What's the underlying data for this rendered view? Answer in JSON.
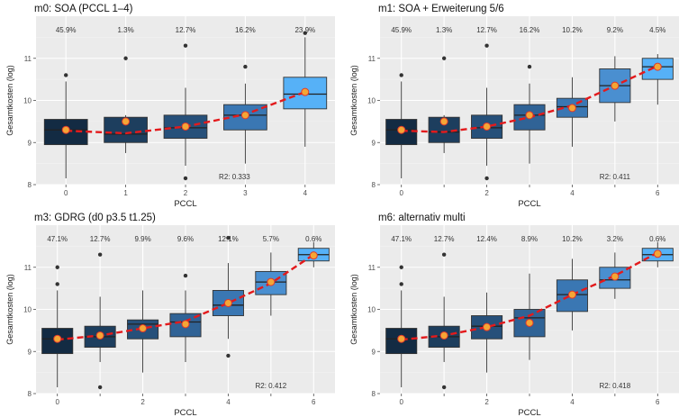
{
  "chart_data": [
    {
      "type": "boxplot",
      "title": "m0: SOA (PCCL 1–4)",
      "xlabel": "PCCL",
      "ylabel": "Gesamtkosten (log)",
      "ylim": [
        8,
        12
      ],
      "yticks": [
        8,
        9,
        10,
        11
      ],
      "x_ticks": [
        "0",
        "1",
        "2",
        "3",
        "4"
      ],
      "r2_label": "R2: 0.333",
      "groups": [
        {
          "x": "0",
          "pct": "45.9%",
          "whisker_low": 8.15,
          "q1": 8.95,
          "median": 9.3,
          "q3": 9.55,
          "whisker_high": 10.45,
          "mean": 9.3,
          "outliers": [
            10.6
          ]
        },
        {
          "x": "1",
          "pct": "1.3%",
          "whisker_low": 8.75,
          "q1": 9.0,
          "median": 9.2,
          "q3": 9.6,
          "whisker_high": 9.65,
          "mean": 9.5,
          "outliers": [
            11.0
          ]
        },
        {
          "x": "2",
          "pct": "12.7%",
          "whisker_low": 8.45,
          "q1": 9.1,
          "median": 9.35,
          "q3": 9.65,
          "whisker_high": 10.3,
          "mean": 9.38,
          "outliers": [
            8.15,
            11.3
          ]
        },
        {
          "x": "3",
          "pct": "16.2%",
          "whisker_low": 8.5,
          "q1": 9.3,
          "median": 9.65,
          "q3": 9.9,
          "whisker_high": 10.4,
          "mean": 9.65,
          "outliers": [
            10.8
          ]
        },
        {
          "x": "4",
          "pct": "23.9%",
          "whisker_low": 8.9,
          "q1": 9.8,
          "median": 10.15,
          "q3": 10.55,
          "whisker_high": 11.5,
          "mean": 10.2,
          "outliers": [
            11.6
          ]
        }
      ],
      "trend": [
        9.28,
        9.22,
        9.38,
        9.67,
        10.2
      ]
    },
    {
      "type": "boxplot",
      "title": "m1: SOA + Erweiterung 5/6",
      "xlabel": "PCCL",
      "ylabel": "Gesamtkosten (log)",
      "ylim": [
        8,
        12
      ],
      "yticks": [
        8,
        9,
        10,
        11
      ],
      "x_ticks": [
        "0",
        "",
        "2",
        "",
        "4",
        "",
        "6"
      ],
      "r2_label": "R2: 0.411",
      "groups": [
        {
          "x": "0",
          "pct": "45.9%",
          "whisker_low": 8.15,
          "q1": 8.95,
          "median": 9.3,
          "q3": 9.55,
          "whisker_high": 10.45,
          "mean": 9.3,
          "outliers": [
            10.6
          ]
        },
        {
          "x": "1",
          "pct": "1.3%",
          "whisker_low": 8.75,
          "q1": 9.0,
          "median": 9.25,
          "q3": 9.6,
          "whisker_high": 9.65,
          "mean": 9.5,
          "outliers": [
            11.0
          ]
        },
        {
          "x": "2",
          "pct": "12.7%",
          "whisker_low": 8.45,
          "q1": 9.1,
          "median": 9.35,
          "q3": 9.65,
          "whisker_high": 10.3,
          "mean": 9.38,
          "outliers": [
            8.15,
            11.3
          ]
        },
        {
          "x": "3",
          "pct": "16.2%",
          "whisker_low": 8.5,
          "q1": 9.3,
          "median": 9.65,
          "q3": 9.9,
          "whisker_high": 10.4,
          "mean": 9.65,
          "outliers": [
            10.8
          ]
        },
        {
          "x": "4",
          "pct": "10.2%",
          "whisker_low": 8.9,
          "q1": 9.6,
          "median": 9.85,
          "q3": 10.05,
          "whisker_high": 10.55,
          "mean": 9.82,
          "outliers": []
        },
        {
          "x": "5",
          "pct": "9.2%",
          "whisker_low": 9.5,
          "q1": 9.95,
          "median": 10.35,
          "q3": 10.75,
          "whisker_high": 11.05,
          "mean": 10.35,
          "outliers": []
        },
        {
          "x": "6",
          "pct": "4.5%",
          "whisker_low": 9.9,
          "q1": 10.5,
          "median": 10.8,
          "q3": 11.0,
          "whisker_high": 11.1,
          "mean": 10.8,
          "outliers": []
        }
      ],
      "trend": [
        9.28,
        9.25,
        9.38,
        9.6,
        9.88,
        10.35,
        10.82
      ]
    },
    {
      "type": "boxplot",
      "title": "m3: GDRG (d0 p3.5 t1.25)",
      "xlabel": "PCCL",
      "ylabel": "Gesamtkosten (log)",
      "ylim": [
        8,
        12
      ],
      "yticks": [
        8,
        9,
        10,
        11
      ],
      "x_ticks": [
        "0",
        "",
        "2",
        "",
        "4",
        "",
        "6"
      ],
      "r2_label": "R2: 0.412",
      "groups": [
        {
          "x": "0",
          "pct": "47.1%",
          "whisker_low": 8.15,
          "q1": 8.95,
          "median": 9.3,
          "q3": 9.55,
          "whisker_high": 10.45,
          "mean": 9.3,
          "outliers": [
            10.6,
            11.0
          ]
        },
        {
          "x": "1",
          "pct": "12.7%",
          "whisker_low": 8.75,
          "q1": 9.1,
          "median": 9.35,
          "q3": 9.6,
          "whisker_high": 10.3,
          "mean": 9.38,
          "outliers": [
            8.15,
            11.3
          ]
        },
        {
          "x": "2",
          "pct": "9.9%",
          "whisker_low": 8.5,
          "q1": 9.3,
          "median": 9.65,
          "q3": 9.75,
          "whisker_high": 10.45,
          "mean": 9.55,
          "outliers": []
        },
        {
          "x": "3",
          "pct": "9.6%",
          "whisker_low": 8.75,
          "q1": 9.35,
          "median": 9.7,
          "q3": 9.9,
          "whisker_high": 10.45,
          "mean": 9.65,
          "outliers": [
            10.8
          ]
        },
        {
          "x": "4",
          "pct": "12.1%",
          "whisker_low": 9.3,
          "q1": 9.85,
          "median": 10.1,
          "q3": 10.45,
          "whisker_high": 11.1,
          "mean": 10.15,
          "outliers": [
            8.9,
            11.7
          ]
        },
        {
          "x": "5",
          "pct": "5.7%",
          "whisker_low": 9.85,
          "q1": 10.35,
          "median": 10.65,
          "q3": 10.9,
          "whisker_high": 11.35,
          "mean": 10.65,
          "outliers": []
        },
        {
          "x": "6",
          "pct": "0.6%",
          "whisker_low": 11.0,
          "q1": 11.15,
          "median": 11.3,
          "q3": 11.45,
          "whisker_high": 11.6,
          "mean": 11.28,
          "outliers": []
        }
      ],
      "trend": [
        9.28,
        9.38,
        9.55,
        9.72,
        10.15,
        10.62,
        11.3
      ]
    },
    {
      "type": "boxplot",
      "title": "m6: alternativ multi",
      "xlabel": "PCCL",
      "ylabel": "Gesamtkosten (log)",
      "ylim": [
        8,
        12
      ],
      "yticks": [
        8,
        9,
        10,
        11
      ],
      "x_ticks": [
        "0",
        "",
        "2",
        "",
        "4",
        "",
        "6"
      ],
      "r2_label": "R2: 0.418",
      "groups": [
        {
          "x": "0",
          "pct": "47.1%",
          "whisker_low": 8.15,
          "q1": 8.95,
          "median": 9.3,
          "q3": 9.55,
          "whisker_high": 10.45,
          "mean": 9.3,
          "outliers": [
            10.6,
            11.0
          ]
        },
        {
          "x": "1",
          "pct": "12.7%",
          "whisker_low": 8.75,
          "q1": 9.1,
          "median": 9.35,
          "q3": 9.6,
          "whisker_high": 10.3,
          "mean": 9.38,
          "outliers": [
            8.15,
            11.3
          ]
        },
        {
          "x": "2",
          "pct": "12.4%",
          "whisker_low": 8.5,
          "q1": 9.3,
          "median": 9.6,
          "q3": 9.85,
          "whisker_high": 10.4,
          "mean": 9.58,
          "outliers": []
        },
        {
          "x": "3",
          "pct": "8.9%",
          "whisker_low": 8.8,
          "q1": 9.35,
          "median": 9.8,
          "q3": 10.0,
          "whisker_high": 10.85,
          "mean": 9.68,
          "outliers": []
        },
        {
          "x": "4",
          "pct": "10.2%",
          "whisker_low": 9.5,
          "q1": 9.95,
          "median": 10.35,
          "q3": 10.7,
          "whisker_high": 11.2,
          "mean": 10.35,
          "outliers": []
        },
        {
          "x": "5",
          "pct": "3.2%",
          "whisker_low": 10.25,
          "q1": 10.5,
          "median": 10.7,
          "q3": 11.0,
          "whisker_high": 11.35,
          "mean": 10.78,
          "outliers": []
        },
        {
          "x": "6",
          "pct": "0.6%",
          "whisker_low": 11.0,
          "q1": 11.15,
          "median": 11.3,
          "q3": 11.45,
          "whisker_high": 11.6,
          "mean": 11.32,
          "outliers": []
        }
      ],
      "trend": [
        9.28,
        9.38,
        9.58,
        9.85,
        10.35,
        10.8,
        11.35
      ]
    }
  ],
  "colors": {
    "panel_background": "#ebebeb",
    "grid": "#ffffff",
    "box_fills": [
      "#132b43",
      "#1d3e5e",
      "#26507a",
      "#306396",
      "#3a77b3",
      "#4a8fd0",
      "#56b1f7"
    ],
    "mean_point": "#f4a636",
    "mean_point_edge": "#e0392b",
    "trend_line": "#e31a1c",
    "outlier": "#333333",
    "text": "#333333",
    "axis_text": "#4d4d4d"
  }
}
